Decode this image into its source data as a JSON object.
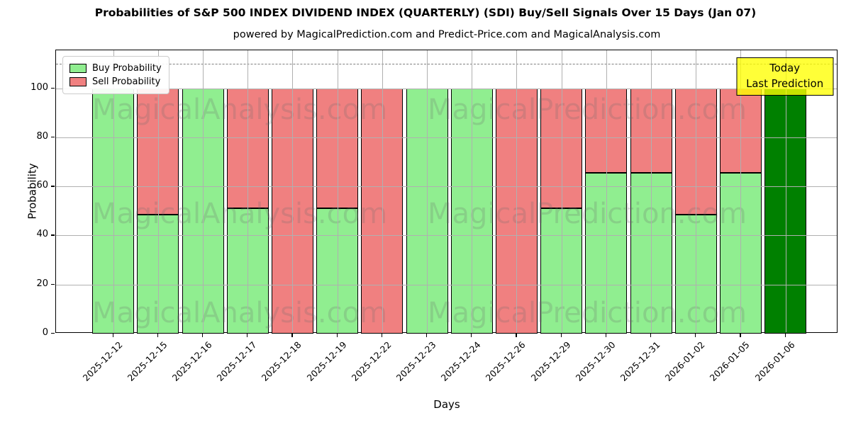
{
  "title": "Probabilities of S&P 500 INDEX DIVIDEND INDEX (QUARTERLY) (SDI) Buy/Sell Signals Over 15 Days (Jan 07)",
  "subtitle": "powered by MagicalPrediction.com and Predict-Price.com and MagicalAnalysis.com",
  "axes": {
    "xlabel": "Days",
    "ylabel": "Probability",
    "yticks": [
      0,
      20,
      40,
      60,
      80,
      100
    ],
    "ymax": 115.5,
    "dashed_guide_y": 110,
    "grid": true
  },
  "legend": {
    "buy_label": "Buy Probability",
    "sell_label": "Sell Probability",
    "position": "upper left"
  },
  "annotation": {
    "line1": "Today",
    "line2": "Last Prediction",
    "bg_color": "#ffff00"
  },
  "watermarks": {
    "left_text": "MagicalAnalysis.com",
    "right_text": "MagicalPrediction.com"
  },
  "colors": {
    "buy": "#90ee90",
    "sell": "#f08080",
    "today_bar": "#008000",
    "bar_edge": "#000000",
    "grid": "#b0b0b0",
    "dashed_guide": "#7f7f7f",
    "annotation_bg": "#ffff00"
  },
  "chart_data": {
    "type": "bar",
    "stacked": true,
    "title": "Probabilities of S&P 500 INDEX DIVIDEND INDEX (QUARTERLY) (SDI) Buy/Sell Signals Over 15 Days (Jan 07)",
    "xlabel": "Days",
    "ylabel": "Probability",
    "ylim": [
      0,
      115.5
    ],
    "grid": true,
    "legend_position": "upper left",
    "categories": [
      "2025-12-12",
      "2025-12-15",
      "2025-12-16",
      "2025-12-17",
      "2025-12-18",
      "2025-12-19",
      "2025-12-22",
      "2025-12-23",
      "2025-12-24",
      "2025-12-26",
      "2025-12-29",
      "2025-12-30",
      "2025-12-31",
      "2026-01-02",
      "2026-01-05",
      "2026-01-06"
    ],
    "series": [
      {
        "name": "Buy Probability",
        "color": "#90ee90",
        "values": [
          100,
          48.5,
          100,
          51,
          0,
          51,
          0,
          100,
          100,
          0,
          51,
          65.5,
          65.5,
          48.5,
          65.5,
          100
        ]
      },
      {
        "name": "Sell Probability",
        "color": "#f08080",
        "values": [
          0,
          51.5,
          0,
          49,
          100,
          49,
          100,
          0,
          0,
          100,
          49,
          34.5,
          34.5,
          51.5,
          34.5,
          0
        ]
      }
    ],
    "today_bar_index": 15,
    "today_bar_color": "#008000"
  }
}
